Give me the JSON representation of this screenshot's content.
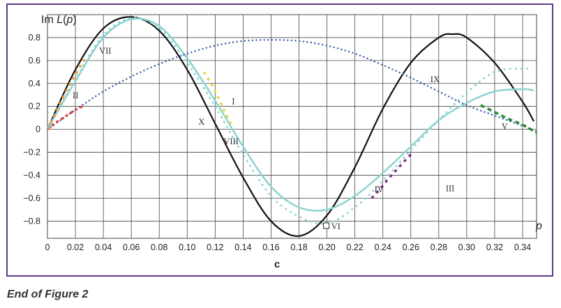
{
  "caption": "End of Figure 2",
  "chart_data": {
    "type": "line",
    "panel_label": "c",
    "ylabel": "Im L(p)",
    "xlabel": "p",
    "xlim": [
      0,
      0.35
    ],
    "ylim": [
      -0.95,
      1.0
    ],
    "xticks": [
      0,
      0.02,
      0.04,
      0.06,
      0.08,
      0.1,
      0.12,
      0.14,
      0.16,
      0.18,
      0.2,
      0.22,
      0.24,
      0.26,
      0.28,
      0.3,
      0.32,
      0.34
    ],
    "xtick_labels": [
      "0",
      "0.02",
      "0.04",
      "0.06",
      "0.08",
      "0.10",
      "0.12",
      "0.14",
      "0.16",
      "0.18",
      "0.20",
      "0.22",
      "0.24",
      "0.26",
      "0.28",
      "0.30",
      "0.32",
      "0.34"
    ],
    "yticks": [
      -0.8,
      -0.6,
      -0.4,
      -0.2,
      0,
      0.2,
      0.4,
      0.6,
      0.8
    ],
    "ytick_labels": [
      "−0.8",
      "−0.6",
      "−0.4",
      "−0.2",
      "0",
      "0.2",
      "0.4",
      "0.6",
      "0.8"
    ],
    "grid": true,
    "colors": {
      "black": "#111111",
      "teal": "#8fd4d2",
      "blue": "#3b5eab",
      "red": "#e23a2e",
      "orange": "#f2a33a",
      "yellow": "#f2d13a",
      "purple": "#7a2a8c",
      "green": "#2e8b3c",
      "frame": "#5b3a8c"
    },
    "series": [
      {
        "style": "black-solid",
        "x": [
          0,
          0.02,
          0.04,
          0.06,
          0.08,
          0.1,
          0.12,
          0.14,
          0.16,
          0.18,
          0.2,
          0.22,
          0.24,
          0.26,
          0.28,
          0.29,
          0.3,
          0.32,
          0.34,
          0.348
        ],
        "y": [
          0,
          0.52,
          0.88,
          0.98,
          0.86,
          0.52,
          0.05,
          -0.42,
          -0.8,
          -0.93,
          -0.75,
          -0.33,
          0.18,
          0.58,
          0.8,
          0.83,
          0.8,
          0.58,
          0.24,
          0.07
        ]
      },
      {
        "style": "teal-solid",
        "x": [
          0,
          0.02,
          0.04,
          0.06,
          0.08,
          0.1,
          0.12,
          0.14,
          0.16,
          0.18,
          0.2,
          0.22,
          0.24,
          0.26,
          0.28,
          0.3,
          0.32,
          0.34,
          0.348
        ],
        "y": [
          0,
          0.42,
          0.8,
          0.96,
          0.9,
          0.62,
          0.25,
          -0.15,
          -0.5,
          -0.68,
          -0.7,
          -0.58,
          -0.38,
          -0.15,
          0.08,
          0.23,
          0.33,
          0.35,
          0.34
        ]
      },
      {
        "style": "teal-dotted",
        "x": [
          0,
          0.02,
          0.04,
          0.06,
          0.08,
          0.1,
          0.12,
          0.14,
          0.16,
          0.18,
          0.2,
          0.22,
          0.24,
          0.26,
          0.28,
          0.3,
          0.32,
          0.34,
          0.345
        ],
        "y": [
          0,
          0.44,
          0.82,
          0.97,
          0.88,
          0.58,
          0.2,
          -0.22,
          -0.58,
          -0.76,
          -0.82,
          -0.68,
          -0.45,
          -0.18,
          0.08,
          0.32,
          0.5,
          0.53,
          0.52
        ]
      },
      {
        "style": "blue-dotted",
        "x": [
          0,
          0.02,
          0.04,
          0.06,
          0.08,
          0.1,
          0.12,
          0.14,
          0.16,
          0.18,
          0.2,
          0.22,
          0.24,
          0.26,
          0.28,
          0.3,
          0.32,
          0.34,
          0.35
        ],
        "y": [
          0,
          0.17,
          0.33,
          0.46,
          0.57,
          0.66,
          0.73,
          0.77,
          0.78,
          0.77,
          0.73,
          0.66,
          0.56,
          0.45,
          0.33,
          0.21,
          0.12,
          0.03,
          -0.02
        ]
      },
      {
        "style": "red-dashed",
        "x": [
          0,
          0.005,
          0.01,
          0.015,
          0.02,
          0.025
        ],
        "y": [
          0,
          0.05,
          0.09,
          0.13,
          0.17,
          0.2
        ]
      },
      {
        "style": "orange-dashed",
        "x": [
          0,
          0.005,
          0.01,
          0.015,
          0.02,
          0.025,
          0.028
        ],
        "y": [
          0,
          0.12,
          0.25,
          0.37,
          0.48,
          0.58,
          0.63
        ]
      },
      {
        "style": "yellow-dashed",
        "x": [
          0.112,
          0.117,
          0.122,
          0.127,
          0.132
        ],
        "y": [
          0.5,
          0.4,
          0.28,
          0.15,
          0.03
        ]
      },
      {
        "style": "purple-dashed",
        "x": [
          0.232,
          0.238,
          0.244,
          0.25,
          0.256,
          0.26
        ],
        "y": [
          -0.6,
          -0.52,
          -0.43,
          -0.35,
          -0.27,
          -0.22
        ]
      },
      {
        "style": "green-dashed",
        "x": [
          0.31,
          0.32,
          0.33,
          0.34,
          0.35
        ],
        "y": [
          0.21,
          0.15,
          0.09,
          0.04,
          -0.03
        ]
      }
    ],
    "annotations": [
      {
        "text": "VII",
        "x": 0.037,
        "y": 0.66
      },
      {
        "text": "II",
        "x": 0.018,
        "y": 0.27
      },
      {
        "text": "I",
        "x": 0.132,
        "y": 0.22
      },
      {
        "text": "X",
        "x": 0.108,
        "y": 0.04
      },
      {
        "text": "VIII",
        "x": 0.126,
        "y": -0.13
      },
      {
        "text": "IX",
        "x": 0.274,
        "y": 0.41
      },
      {
        "text": "V",
        "x": 0.325,
        "y": 0.0
      },
      {
        "text": "IV",
        "x": 0.234,
        "y": -0.55
      },
      {
        "text": "III",
        "x": 0.285,
        "y": -0.54
      },
      {
        "text": "VI",
        "x": 0.203,
        "y": -0.87,
        "boxed": true
      }
    ]
  }
}
